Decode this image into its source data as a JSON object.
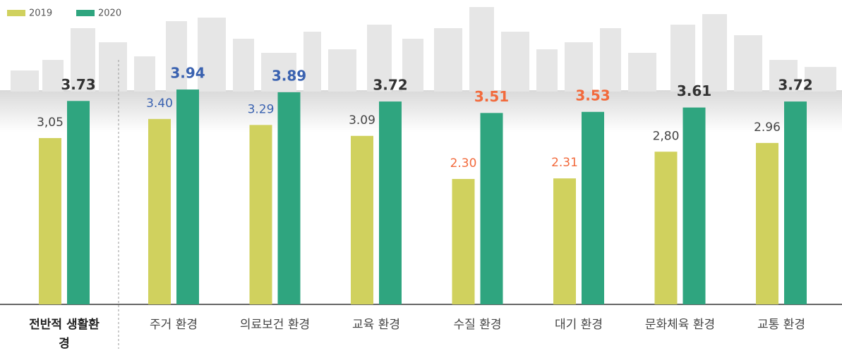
{
  "chart_data": {
    "type": "bar",
    "categories": [
      "전반적 생활환경",
      "주거 환경",
      "의료보건 환경",
      "교육 환경",
      "수질 환경",
      "대기 환경",
      "문화체육 환경",
      "교통 환경"
    ],
    "series": [
      {
        "name": "2019",
        "color": "#d0d15e",
        "values": [
          3.05,
          3.4,
          3.29,
          3.09,
          2.3,
          2.31,
          2.8,
          2.96
        ],
        "value_labels": [
          "3,05",
          "3.40",
          "3.29",
          "3.09",
          "2.30",
          "2.31",
          "2,80",
          "2.96"
        ],
        "value_label_colors": [
          "#444444",
          "#3a62b0",
          "#3a62b0",
          "#444444",
          "#f26a3c",
          "#f26a3c",
          "#444444",
          "#444444"
        ]
      },
      {
        "name": "2020",
        "color": "#2fa57f",
        "values": [
          3.73,
          3.94,
          3.89,
          3.72,
          3.51,
          3.53,
          3.61,
          3.72
        ],
        "value_label_colors": [
          "#333333",
          "#3a62b0",
          "#3a62b0",
          "#333333",
          "#f26a3c",
          "#f26a3c",
          "#333333",
          "#333333"
        ]
      }
    ],
    "ylim": [
      0,
      4
    ]
  }
}
